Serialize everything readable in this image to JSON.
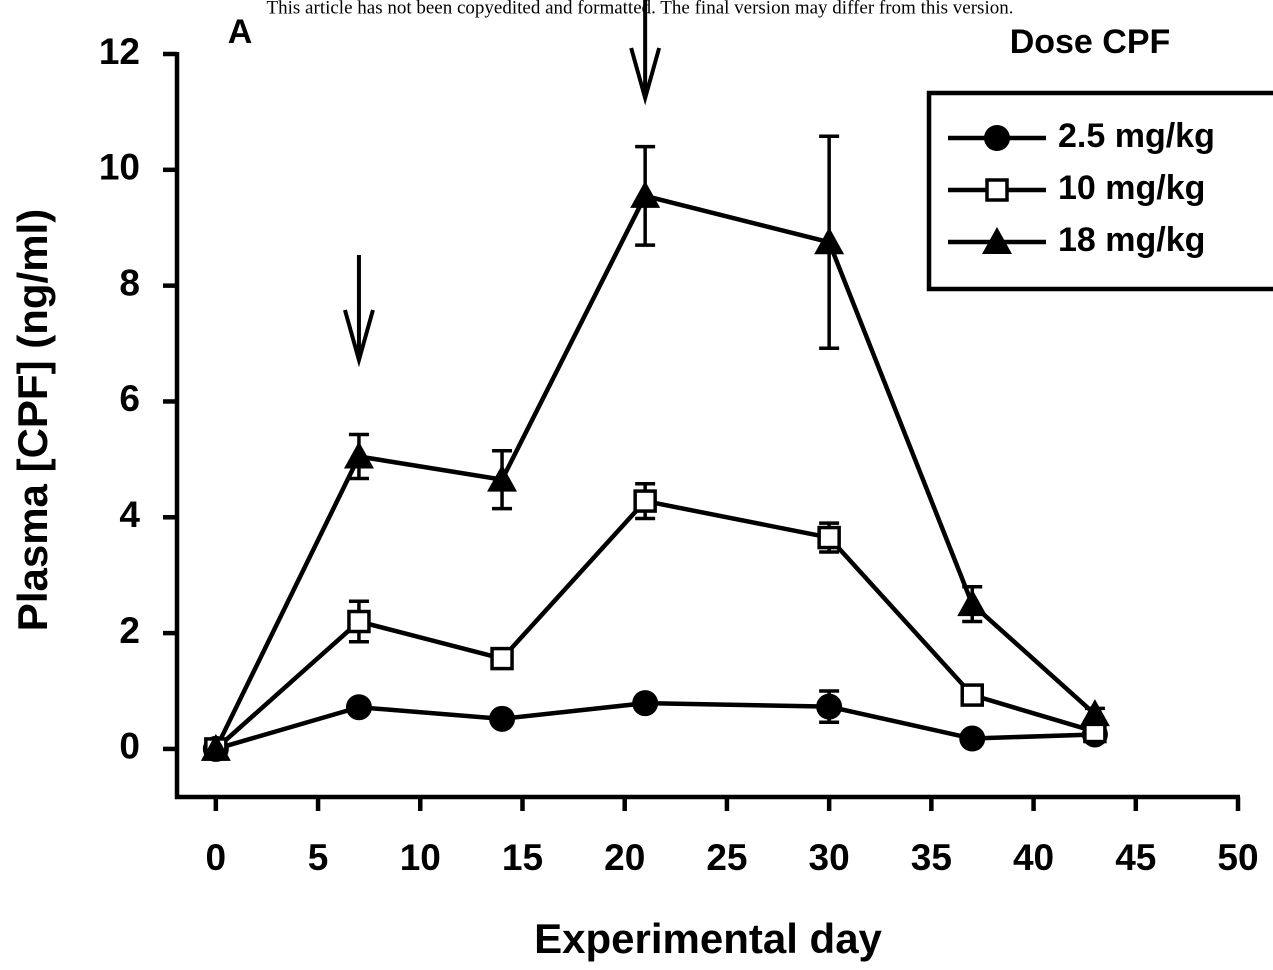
{
  "chart_data": {
    "type": "line",
    "header": "This article has not been copyedited and formatted. The final version may differ from this version.",
    "panel_label": "A",
    "legend_title": "Dose CPF",
    "x_label": "Experimental day",
    "y_label": "Plasma [CPF] (ng/ml)",
    "x": [
      0,
      7,
      14,
      21,
      30,
      37,
      43
    ],
    "series": [
      {
        "name": "2.5 mg/kg",
        "color": "#000000",
        "marker": "circle",
        "values": [
          0,
          0.72,
          0.52,
          0.79,
          0.73,
          0.18,
          0.25
        ],
        "errors": [
          0.05,
          0.08,
          0.06,
          0.08,
          0.27,
          0.05,
          0.05
        ]
      },
      {
        "name": "10 mg/kg",
        "color": "#000000",
        "marker": "square",
        "values": [
          0,
          2.2,
          1.56,
          4.28,
          3.65,
          0.93,
          0.3
        ],
        "errors": [
          0.05,
          0.35,
          0.15,
          0.3,
          0.25,
          0.1,
          0.08
        ]
      },
      {
        "name": "18 mg/kg",
        "color": "#000000",
        "marker": "triangle",
        "values": [
          0,
          5.05,
          4.65,
          9.55,
          8.75,
          2.5,
          0.6
        ],
        "errors": [
          0.05,
          0.38,
          0.5,
          0.85,
          1.83,
          0.3,
          0.1
        ]
      }
    ],
    "dose_arrows": [
      7,
      21
    ],
    "xlim": [
      -1.9,
      50
    ],
    "ylim": [
      -0.83,
      12
    ],
    "xticks": [
      0,
      5,
      10,
      15,
      20,
      25,
      30,
      35,
      40,
      45,
      50
    ],
    "yticks": [
      0,
      2,
      4,
      6,
      8,
      10,
      12
    ],
    "legend": "upper right"
  }
}
